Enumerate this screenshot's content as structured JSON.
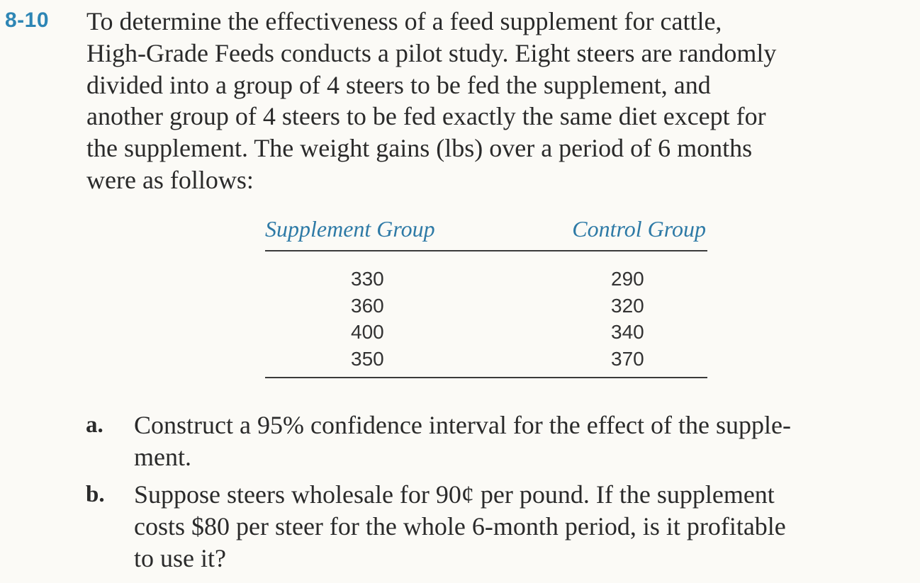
{
  "problem": {
    "number": "8-10",
    "intro_lines": [
      "To determine the effectiveness of a feed supplement for cattle,",
      "High-Grade Feeds conducts a pilot study. Eight steers are randomly",
      "divided into a group of 4 steers to be fed the supplement, and",
      "another group of 4 steers to be fed exactly the same diet except for",
      "the supplement. The weight gains (lbs) over a period of 6 months",
      "were as follows:"
    ]
  },
  "table": {
    "headers": [
      "Supplement Group",
      "Control Group"
    ],
    "supplement": [
      "330",
      "360",
      "400",
      "350"
    ],
    "control": [
      "290",
      "320",
      "340",
      "370"
    ]
  },
  "questions": [
    {
      "marker": "a.",
      "lines": [
        "Construct a 95% confidence interval for the effect of the supple-",
        "ment."
      ]
    },
    {
      "marker": "b.",
      "lines": [
        "Suppose steers wholesale for 90¢ per pound. If the supplement",
        "costs $80 per steer for the whole 6-month period, is it profitable",
        "to use it?"
      ]
    }
  ]
}
